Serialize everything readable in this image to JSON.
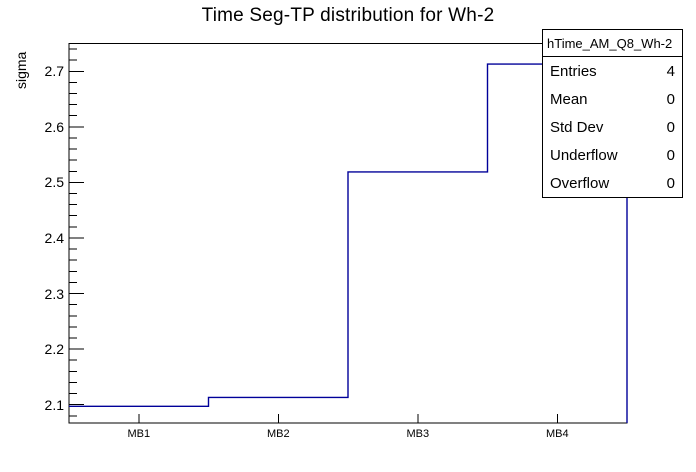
{
  "title": "Time Seg-TP distribution for Wh-2",
  "y_axis_label": "sigma",
  "stats_box": {
    "header": "hTime_AM_Q8_Wh-2",
    "rows": [
      {
        "label": "Entries",
        "value": "4"
      },
      {
        "label": "Mean",
        "value": "0"
      },
      {
        "label": "Std Dev",
        "value": "0"
      },
      {
        "label": "Underflow",
        "value": "0"
      },
      {
        "label": "Overflow",
        "value": "0"
      }
    ]
  },
  "chart_data": {
    "type": "step-histogram",
    "title": "Time Seg-TP distribution for Wh-2",
    "xlabel": "",
    "ylabel": "sigma",
    "categories": [
      "MB1",
      "MB2",
      "MB3",
      "MB4"
    ],
    "values": [
      2.097,
      2.113,
      2.519,
      2.713
    ],
    "ylim": [
      2.067,
      2.75
    ],
    "y_ticks": [
      2.1,
      2.2,
      2.3,
      2.4,
      2.5,
      2.6,
      2.7
    ],
    "y_minor_tick_step": 0.02,
    "grid": false,
    "legend_position": "top-right",
    "line_color": "#000099",
    "frame_color": "#000000",
    "background_color": "#ffffff"
  }
}
